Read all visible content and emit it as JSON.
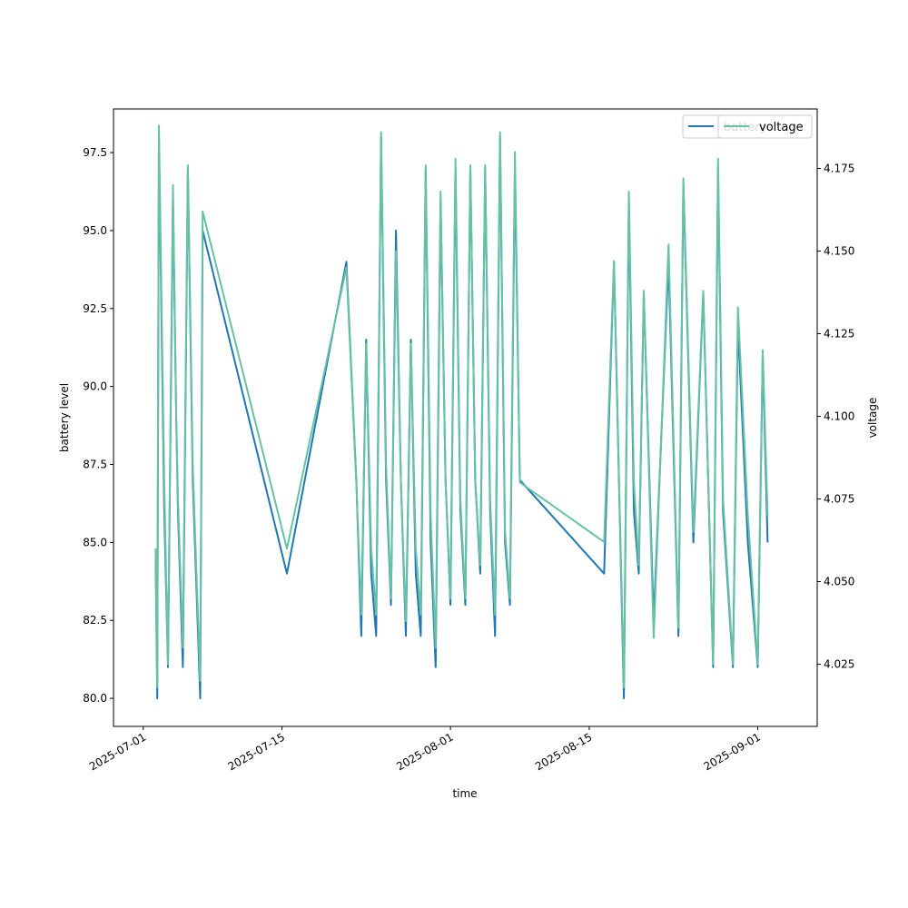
{
  "chart_data": {
    "type": "line",
    "xlabel": "time",
    "ylabel_left": "battery level",
    "ylabel_right": "voltage",
    "x_range": [
      "2025-06-28",
      "2025-09-07"
    ],
    "ylim_left": [
      79.1,
      98.9
    ],
    "ylim_right": [
      4.0062,
      4.193
    ],
    "x_ticks": [
      "2025-07-01",
      "2025-07-15",
      "2025-08-01",
      "2025-08-15",
      "2025-09-01"
    ],
    "y_ticks_left": [
      "80.0",
      "82.5",
      "85.0",
      "87.5",
      "90.0",
      "92.5",
      "95.0",
      "97.5"
    ],
    "y_ticks_right": [
      "4.025",
      "4.050",
      "4.075",
      "4.100",
      "4.125",
      "4.150",
      "4.175"
    ],
    "legend": {
      "placement": "upper-right",
      "entries": [
        "battery",
        "voltage"
      ]
    },
    "colors": {
      "battery": "#1f77b4",
      "voltage": "#66c2a5"
    },
    "series": [
      {
        "name": "battery",
        "axis": "left",
        "points": [
          [
            "2025-07-02T06:00",
            84.5
          ],
          [
            "2025-07-02T10:00",
            80.0
          ],
          [
            "2025-07-02T14:00",
            98.0
          ],
          [
            "2025-07-03T03:00",
            86.0
          ],
          [
            "2025-07-03T12:00",
            81.0
          ],
          [
            "2025-07-04T00:00",
            96.0
          ],
          [
            "2025-07-04T08:00",
            89.0
          ],
          [
            "2025-07-04T12:00",
            86.0
          ],
          [
            "2025-07-05T00:00",
            81.0
          ],
          [
            "2025-07-05T12:00",
            97.0
          ],
          [
            "2025-07-06T00:00",
            87.0
          ],
          [
            "2025-07-06T18:00",
            80.0
          ],
          [
            "2025-07-07T00:00",
            95.0
          ],
          [
            "2025-07-15T12:00",
            84.0
          ],
          [
            "2025-07-21T12:00",
            94.0
          ],
          [
            "2025-07-22T12:00",
            87.0
          ],
          [
            "2025-07-23T00:00",
            82.0
          ],
          [
            "2025-07-23T12:00",
            91.5
          ],
          [
            "2025-07-24T00:00",
            84.0
          ],
          [
            "2025-07-24T12:00",
            82.0
          ],
          [
            "2025-07-25T00:00",
            98.0
          ],
          [
            "2025-07-25T12:00",
            87.0
          ],
          [
            "2025-07-26T00:00",
            83.0
          ],
          [
            "2025-07-26T12:00",
            95.0
          ],
          [
            "2025-07-27T00:00",
            87.0
          ],
          [
            "2025-07-27T12:00",
            82.0
          ],
          [
            "2025-07-28T00:00",
            91.5
          ],
          [
            "2025-07-28T12:00",
            84.0
          ],
          [
            "2025-07-29T00:00",
            82.0
          ],
          [
            "2025-07-29T12:00",
            97.0
          ],
          [
            "2025-07-30T00:00",
            85.0
          ],
          [
            "2025-07-30T12:00",
            81.0
          ],
          [
            "2025-07-31T00:00",
            96.0
          ],
          [
            "2025-07-31T12:00",
            87.0
          ],
          [
            "2025-08-01T00:00",
            83.0
          ],
          [
            "2025-08-01T12:00",
            97.0
          ],
          [
            "2025-08-02T00:00",
            86.0
          ],
          [
            "2025-08-02T12:00",
            83.0
          ],
          [
            "2025-08-03T00:00",
            97.0
          ],
          [
            "2025-08-03T12:00",
            87.0
          ],
          [
            "2025-08-04T00:00",
            84.0
          ],
          [
            "2025-08-04T12:00",
            97.0
          ],
          [
            "2025-08-05T00:00",
            86.0
          ],
          [
            "2025-08-05T12:00",
            82.0
          ],
          [
            "2025-08-06T00:00",
            98.0
          ],
          [
            "2025-08-06T12:00",
            85.0
          ],
          [
            "2025-08-07T00:00",
            83.0
          ],
          [
            "2025-08-07T12:00",
            97.0
          ],
          [
            "2025-08-08T00:00",
            87.0
          ],
          [
            "2025-08-16T12:00",
            84.0
          ],
          [
            "2025-08-17T12:00",
            94.0
          ],
          [
            "2025-08-18T12:00",
            80.0
          ],
          [
            "2025-08-19T00:00",
            96.0
          ],
          [
            "2025-08-19T12:00",
            86.0
          ],
          [
            "2025-08-20T00:00",
            84.0
          ],
          [
            "2025-08-20T12:00",
            93.0
          ],
          [
            "2025-08-21T12:00",
            82.5
          ],
          [
            "2025-08-23T00:00",
            94.0
          ],
          [
            "2025-08-24T00:00",
            82.0
          ],
          [
            "2025-08-24T12:00",
            96.5
          ],
          [
            "2025-08-25T12:00",
            85.0
          ],
          [
            "2025-08-26T12:00",
            93.0
          ],
          [
            "2025-08-27T12:00",
            81.0
          ],
          [
            "2025-08-28T00:00",
            97.0
          ],
          [
            "2025-08-28T12:00",
            86.0
          ],
          [
            "2025-08-29T12:00",
            81.0
          ],
          [
            "2025-08-30T00:00",
            92.0
          ],
          [
            "2025-08-31T00:00",
            85.0
          ],
          [
            "2025-09-01T00:00",
            81.0
          ],
          [
            "2025-09-01T12:00",
            91.0
          ],
          [
            "2025-09-02T00:00",
            85.0
          ]
        ]
      },
      {
        "name": "voltage",
        "axis": "right",
        "points": [
          [
            "2025-07-02T06:00",
            4.06
          ],
          [
            "2025-07-02T10:00",
            4.018
          ],
          [
            "2025-07-02T14:00",
            4.188
          ],
          [
            "2025-07-03T03:00",
            4.08
          ],
          [
            "2025-07-03T12:00",
            4.025
          ],
          [
            "2025-07-04T00:00",
            4.17
          ],
          [
            "2025-07-04T08:00",
            4.1
          ],
          [
            "2025-07-04T12:00",
            4.075
          ],
          [
            "2025-07-05T00:00",
            4.03
          ],
          [
            "2025-07-05T12:00",
            4.176
          ],
          [
            "2025-07-06T00:00",
            4.085
          ],
          [
            "2025-07-06T18:00",
            4.02
          ],
          [
            "2025-07-07T00:00",
            4.162
          ],
          [
            "2025-07-15T12:00",
            4.06
          ],
          [
            "2025-07-21T12:00",
            4.145
          ],
          [
            "2025-07-22T12:00",
            4.08
          ],
          [
            "2025-07-23T00:00",
            4.04
          ],
          [
            "2025-07-23T12:00",
            4.122
          ],
          [
            "2025-07-24T00:00",
            4.06
          ],
          [
            "2025-07-24T12:00",
            4.04
          ],
          [
            "2025-07-25T00:00",
            4.186
          ],
          [
            "2025-07-25T12:00",
            4.085
          ],
          [
            "2025-07-26T00:00",
            4.045
          ],
          [
            "2025-07-26T12:00",
            4.15
          ],
          [
            "2025-07-27T00:00",
            4.08
          ],
          [
            "2025-07-27T12:00",
            4.038
          ],
          [
            "2025-07-28T00:00",
            4.122
          ],
          [
            "2025-07-28T12:00",
            4.06
          ],
          [
            "2025-07-29T00:00",
            4.04
          ],
          [
            "2025-07-29T12:00",
            4.176
          ],
          [
            "2025-07-30T00:00",
            4.07
          ],
          [
            "2025-07-30T12:00",
            4.03
          ],
          [
            "2025-07-31T00:00",
            4.168
          ],
          [
            "2025-07-31T12:00",
            4.08
          ],
          [
            "2025-08-01T00:00",
            4.045
          ],
          [
            "2025-08-01T12:00",
            4.178
          ],
          [
            "2025-08-02T00:00",
            4.075
          ],
          [
            "2025-08-02T12:00",
            4.045
          ],
          [
            "2025-08-03T00:00",
            4.176
          ],
          [
            "2025-08-03T12:00",
            4.08
          ],
          [
            "2025-08-04T00:00",
            4.055
          ],
          [
            "2025-08-04T12:00",
            4.176
          ],
          [
            "2025-08-05T00:00",
            4.075
          ],
          [
            "2025-08-05T12:00",
            4.04
          ],
          [
            "2025-08-06T00:00",
            4.186
          ],
          [
            "2025-08-06T12:00",
            4.065
          ],
          [
            "2025-08-07T00:00",
            4.045
          ],
          [
            "2025-08-07T12:00",
            4.18
          ],
          [
            "2025-08-08T00:00",
            4.08
          ],
          [
            "2025-08-16T12:00",
            4.062
          ],
          [
            "2025-08-17T12:00",
            4.147
          ],
          [
            "2025-08-18T12:00",
            4.018
          ],
          [
            "2025-08-19T00:00",
            4.168
          ],
          [
            "2025-08-19T12:00",
            4.08
          ],
          [
            "2025-08-20T00:00",
            4.055
          ],
          [
            "2025-08-20T12:00",
            4.138
          ],
          [
            "2025-08-21T12:00",
            4.033
          ],
          [
            "2025-08-23T00:00",
            4.152
          ],
          [
            "2025-08-24T00:00",
            4.036
          ],
          [
            "2025-08-24T12:00",
            4.172
          ],
          [
            "2025-08-25T12:00",
            4.065
          ],
          [
            "2025-08-26T12:00",
            4.138
          ],
          [
            "2025-08-27T12:00",
            4.025
          ],
          [
            "2025-08-28T00:00",
            4.178
          ],
          [
            "2025-08-28T12:00",
            4.075
          ],
          [
            "2025-08-29T12:00",
            4.025
          ],
          [
            "2025-08-30T00:00",
            4.133
          ],
          [
            "2025-08-31T00:00",
            4.07
          ],
          [
            "2025-09-01T00:00",
            4.025
          ],
          [
            "2025-09-01T12:00",
            4.12
          ],
          [
            "2025-09-02T00:00",
            4.07
          ]
        ]
      }
    ]
  }
}
